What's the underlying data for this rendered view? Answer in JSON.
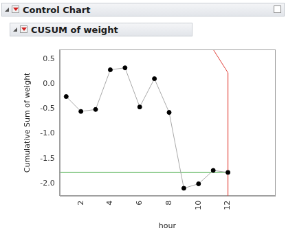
{
  "chart_data": {
    "type": "line",
    "title": "Control Chart",
    "subtitle": "CUSUM of weight",
    "x_label": "hour",
    "y_label": "Cumulative Sum of weight",
    "x": [
      1,
      2,
      3,
      4,
      5,
      6,
      7,
      8,
      9,
      10,
      11,
      12
    ],
    "values": [
      -0.25,
      -0.55,
      -0.51,
      0.29,
      0.33,
      -0.46,
      0.11,
      -0.57,
      -2.1,
      -2.01,
      -1.74,
      -1.78
    ],
    "color": "#000000",
    "marker": "circle",
    "line_style": "solid",
    "reference_line": {
      "color": "#2ca02c",
      "x": [
        0.55,
        12
      ],
      "y": [
        -1.78,
        -1.78
      ]
    },
    "v_mask": {
      "color": "#e0403a",
      "x": [
        11.0,
        12,
        12
      ],
      "y": [
        0.7,
        0.23,
        -2.25
      ]
    },
    "xlim": [
      0.55,
      15.2
    ],
    "xticks": [
      2,
      4,
      6,
      8,
      10,
      12
    ],
    "ylim": [
      -2.25,
      0.7
    ],
    "yticks": [
      {
        "value": -2,
        "label": "-2.0"
      },
      -1.5,
      {
        "value": -1,
        "label": "-1.0"
      },
      -0.5,
      {
        "value": 0,
        "label": "0.0"
      },
      0.5
    ],
    "grid": false
  }
}
